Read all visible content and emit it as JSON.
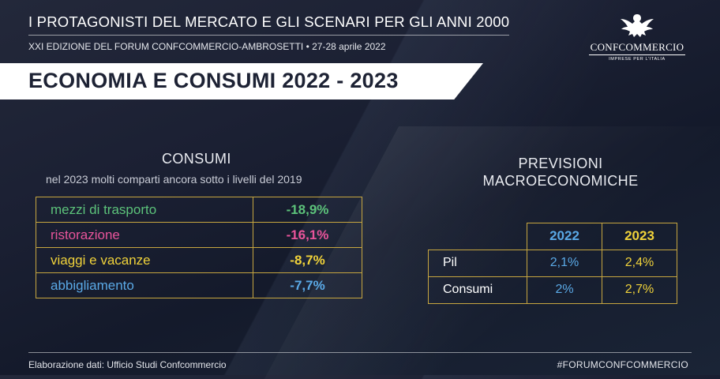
{
  "header": {
    "title": "I PROTAGONISTI DEL MERCATO E GLI SCENARI PER GLI ANNI 2000",
    "subtitle": "XXI EDIZIONE DEL FORUM CONFCOMMERCIO-AMBROSETTI • 27-28 aprile 2022",
    "banner": "ECONOMIA E CONSUMI 2022 - 2023"
  },
  "logo": {
    "icon": "eagle-icon",
    "brand": "CONFCOMMERCIO",
    "tagline": "IMPRESE PER L'ITALIA"
  },
  "consumi": {
    "title": "CONSUMI",
    "subtitle": "nel 2023 molti comparti ancora sotto i livelli del 2019",
    "rows": [
      {
        "label": "mezzi di trasporto",
        "value": "-18,9%",
        "color": "#5cc27a"
      },
      {
        "label": "ristorazione",
        "value": "-16,1%",
        "color": "#e8549a"
      },
      {
        "label": "viaggi e vacanze",
        "value": "-8,7%",
        "color": "#f0d23a"
      },
      {
        "label": "abbigliamento",
        "value": "-7,7%",
        "color": "#5aa9e6"
      }
    ]
  },
  "previsioni": {
    "title_line1": "PREVISIONI",
    "title_line2": "MACROECONOMICHE",
    "columns": [
      {
        "label": "2022",
        "color": "#5aa9e6"
      },
      {
        "label": "2023",
        "color": "#f0d23a"
      }
    ],
    "rows": [
      {
        "label": "Pil",
        "v2022": "2,1%",
        "v2023": "2,4%"
      },
      {
        "label": "Consumi",
        "v2022": "2%",
        "v2023": "2,7%"
      }
    ]
  },
  "footer": {
    "source": "Elaborazione dati: Ufficio Studi Confcommercio",
    "hashtag": "#FORUMCONFCOMMERCIO"
  }
}
